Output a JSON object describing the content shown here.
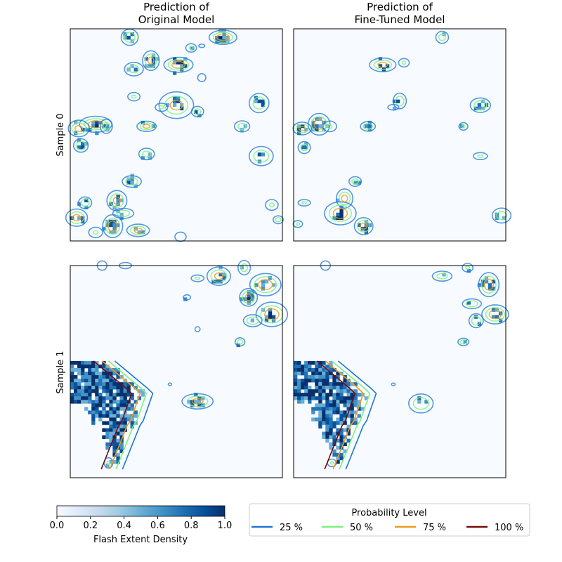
{
  "chart_data": {
    "type": "heatmap",
    "columns": [
      {
        "title_line1": "Prediction of",
        "title_line2": "Original Model"
      },
      {
        "title_line1": "Prediction of",
        "title_line2": "Fine-Tuned Model"
      }
    ],
    "rows": [
      {
        "label": "Sample 0"
      },
      {
        "label": "Sample 1"
      }
    ],
    "colorbar": {
      "label": "Flash Extent Density",
      "vmin": 0.0,
      "vmax": 1.0,
      "ticks": [
        "0.0",
        "0.2",
        "0.4",
        "0.6",
        "0.8",
        "1.0"
      ],
      "colormap": [
        "#f7fbff",
        "#deebf7",
        "#c6dbef",
        "#9ecae1",
        "#6baed6",
        "#4292c6",
        "#2171b5",
        "#08519c",
        "#08306b"
      ]
    },
    "legend": {
      "title": "Probability Level",
      "placement": "bottom-right",
      "entries": [
        {
          "label": "25 %",
          "color": "#1f77d4"
        },
        {
          "label": "50 %",
          "color": "#7ef07e"
        },
        {
          "label": "75 %",
          "color": "#f39a1b"
        },
        {
          "label": "100 %",
          "color": "#7a0a0a"
        }
      ]
    },
    "panels": [
      {
        "row": 0,
        "col": 0,
        "storms": [
          [
            0.28,
            0.04,
            0.025,
            0.7
          ],
          [
            0.72,
            0.04,
            0.03,
            0.9
          ],
          [
            0.57,
            0.09,
            0.02,
            0.5
          ],
          [
            0.38,
            0.15,
            0.03,
            0.8
          ],
          [
            0.51,
            0.17,
            0.035,
            0.9
          ],
          [
            0.3,
            0.19,
            0.025,
            0.6
          ],
          [
            0.62,
            0.23,
            0.02,
            0.4
          ],
          [
            0.3,
            0.32,
            0.025,
            0.5
          ],
          [
            0.5,
            0.36,
            0.04,
            0.8
          ],
          [
            0.43,
            0.37,
            0.02,
            0.5
          ],
          [
            0.6,
            0.39,
            0.025,
            0.6
          ],
          [
            0.89,
            0.35,
            0.03,
            0.7
          ],
          [
            0.12,
            0.45,
            0.035,
            0.9
          ],
          [
            0.04,
            0.47,
            0.03,
            0.8
          ],
          [
            0.17,
            0.46,
            0.025,
            0.6
          ],
          [
            0.36,
            0.46,
            0.025,
            0.8
          ],
          [
            0.81,
            0.46,
            0.02,
            0.6
          ],
          [
            0.05,
            0.55,
            0.025,
            0.7
          ],
          [
            0.36,
            0.59,
            0.03,
            0.6
          ],
          [
            0.9,
            0.6,
            0.03,
            0.7
          ],
          [
            0.29,
            0.72,
            0.025,
            0.7
          ],
          [
            0.07,
            0.82,
            0.025,
            0.7
          ],
          [
            0.22,
            0.81,
            0.03,
            0.8
          ],
          [
            0.25,
            0.87,
            0.025,
            0.7
          ],
          [
            0.03,
            0.89,
            0.03,
            0.8
          ],
          [
            0.2,
            0.93,
            0.035,
            0.9
          ],
          [
            0.32,
            0.95,
            0.03,
            0.8
          ],
          [
            0.12,
            0.96,
            0.02,
            0.5
          ],
          [
            0.95,
            0.83,
            0.025,
            0.5
          ],
          [
            0.98,
            0.9,
            0.02,
            0.6
          ],
          [
            0.52,
            0.98,
            0.02,
            0.4
          ],
          [
            0.62,
            0.08,
            0.015,
            0.3
          ]
        ]
      },
      {
        "row": 0,
        "col": 1,
        "storms": [
          [
            0.7,
            0.04,
            0.02,
            0.6
          ],
          [
            0.42,
            0.17,
            0.03,
            0.8
          ],
          [
            0.52,
            0.16,
            0.02,
            0.5
          ],
          [
            0.5,
            0.34,
            0.025,
            0.7
          ],
          [
            0.47,
            0.37,
            0.02,
            0.4
          ],
          [
            0.88,
            0.36,
            0.025,
            0.7
          ],
          [
            0.12,
            0.45,
            0.035,
            0.9
          ],
          [
            0.04,
            0.47,
            0.03,
            0.8
          ],
          [
            0.17,
            0.46,
            0.02,
            0.5
          ],
          [
            0.35,
            0.46,
            0.02,
            0.7
          ],
          [
            0.8,
            0.46,
            0.02,
            0.5
          ],
          [
            0.05,
            0.56,
            0.02,
            0.6
          ],
          [
            0.88,
            0.6,
            0.02,
            0.5
          ],
          [
            0.29,
            0.72,
            0.02,
            0.6
          ],
          [
            0.24,
            0.8,
            0.03,
            0.8
          ],
          [
            0.05,
            0.82,
            0.02,
            0.5
          ],
          [
            0.22,
            0.87,
            0.035,
            0.9
          ],
          [
            0.33,
            0.93,
            0.03,
            0.8
          ],
          [
            0.02,
            0.92,
            0.02,
            0.5
          ],
          [
            0.98,
            0.88,
            0.025,
            0.6
          ]
        ]
      },
      {
        "row": 1,
        "col": 0,
        "storms": [
          [
            0.15,
            0.0,
            0.02,
            0.4
          ],
          [
            0.26,
            0.0,
            0.02,
            0.4
          ],
          [
            0.7,
            0.05,
            0.035,
            0.8
          ],
          [
            0.82,
            0.01,
            0.025,
            0.6
          ],
          [
            0.6,
            0.06,
            0.02,
            0.5
          ],
          [
            0.92,
            0.09,
            0.035,
            0.9
          ],
          [
            0.84,
            0.15,
            0.03,
            0.8
          ],
          [
            0.55,
            0.15,
            0.015,
            0.5
          ],
          [
            0.95,
            0.23,
            0.035,
            0.9
          ],
          [
            0.86,
            0.26,
            0.025,
            0.7
          ],
          [
            0.8,
            0.36,
            0.02,
            0.6
          ],
          [
            0.6,
            0.3,
            0.015,
            0.3
          ],
          [
            0.6,
            0.64,
            0.035,
            0.8
          ],
          [
            0.47,
            0.56,
            0.01,
            0.3
          ],
          [
            0.18,
            0.93,
            0.02,
            0.5
          ]
        ],
        "landmass": true
      },
      {
        "row": 1,
        "col": 1,
        "storms": [
          [
            0.15,
            0.0,
            0.02,
            0.4
          ],
          [
            0.7,
            0.05,
            0.025,
            0.6
          ],
          [
            0.82,
            0.01,
            0.02,
            0.5
          ],
          [
            0.92,
            0.09,
            0.035,
            0.9
          ],
          [
            0.84,
            0.18,
            0.025,
            0.7
          ],
          [
            0.95,
            0.23,
            0.03,
            0.9
          ],
          [
            0.86,
            0.26,
            0.025,
            0.7
          ],
          [
            0.8,
            0.36,
            0.02,
            0.6
          ],
          [
            0.6,
            0.65,
            0.03,
            0.7
          ],
          [
            0.47,
            0.56,
            0.01,
            0.3
          ],
          [
            0.18,
            0.93,
            0.02,
            0.5
          ]
        ],
        "landmass": true
      }
    ]
  }
}
